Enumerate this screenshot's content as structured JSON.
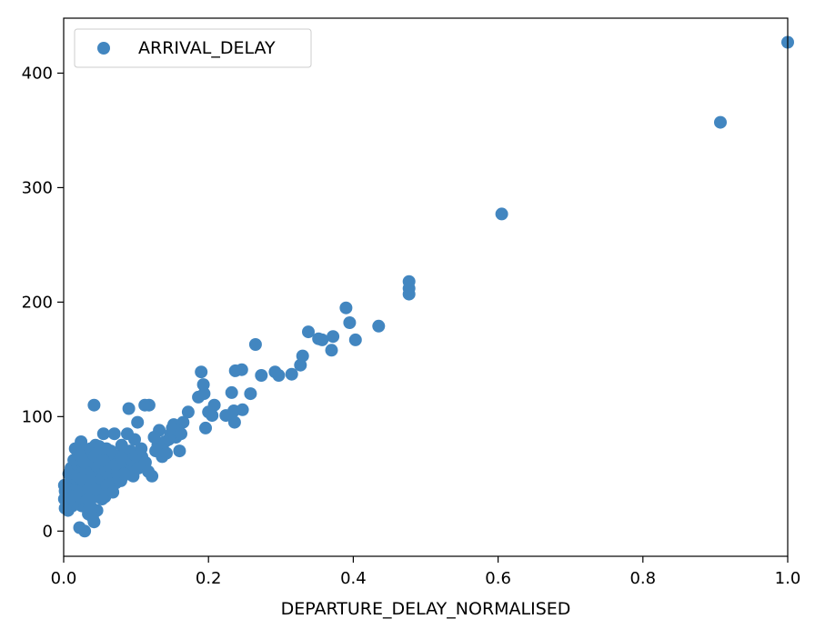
{
  "chart_data": {
    "type": "scatter",
    "title": "",
    "xlabel": "DEPARTURE_DELAY_NORMALISED",
    "ylabel": "",
    "xlim": [
      0.0,
      1.0
    ],
    "ylim": [
      -22,
      448
    ],
    "xticks": [
      0.0,
      0.2,
      0.4,
      0.6,
      0.8,
      1.0
    ],
    "xtick_labels": [
      "0.0",
      "0.2",
      "0.4",
      "0.6",
      "0.8",
      "1.0"
    ],
    "yticks": [
      0,
      100,
      200,
      300,
      400
    ],
    "ytick_labels": [
      "0",
      "100",
      "200",
      "300",
      "400"
    ],
    "grid": false,
    "legend": {
      "position": "top-left",
      "entries": [
        "ARRIVAL_DELAY"
      ]
    },
    "series": [
      {
        "name": "ARRIVAL_DELAY",
        "color": "#4286c0",
        "points": [
          [
            1.0,
            427
          ],
          [
            0.907,
            357
          ],
          [
            0.605,
            277
          ],
          [
            0.477,
            218
          ],
          [
            0.477,
            212
          ],
          [
            0.477,
            207
          ],
          [
            0.435,
            179
          ],
          [
            0.403,
            167
          ],
          [
            0.395,
            182
          ],
          [
            0.39,
            195
          ],
          [
            0.372,
            170
          ],
          [
            0.37,
            158
          ],
          [
            0.357,
            167
          ],
          [
            0.352,
            168
          ],
          [
            0.338,
            174
          ],
          [
            0.33,
            153
          ],
          [
            0.327,
            145
          ],
          [
            0.315,
            137
          ],
          [
            0.297,
            136
          ],
          [
            0.292,
            139
          ],
          [
            0.273,
            136
          ],
          [
            0.265,
            163
          ],
          [
            0.258,
            120
          ],
          [
            0.247,
            106
          ],
          [
            0.246,
            141
          ],
          [
            0.237,
            140
          ],
          [
            0.236,
            95
          ],
          [
            0.232,
            121
          ],
          [
            0.235,
            105
          ],
          [
            0.224,
            101
          ],
          [
            0.208,
            110
          ],
          [
            0.205,
            101
          ],
          [
            0.2,
            104
          ],
          [
            0.196,
            90
          ],
          [
            0.194,
            120
          ],
          [
            0.193,
            128
          ],
          [
            0.19,
            139
          ],
          [
            0.186,
            117
          ],
          [
            0.172,
            104
          ],
          [
            0.165,
            95
          ],
          [
            0.16,
            70
          ],
          [
            0.155,
            82
          ],
          [
            0.152,
            93
          ],
          [
            0.148,
            85
          ],
          [
            0.145,
            80
          ],
          [
            0.14,
            78
          ],
          [
            0.136,
            65
          ],
          [
            0.132,
            88
          ],
          [
            0.13,
            75
          ],
          [
            0.125,
            82
          ],
          [
            0.122,
            48
          ],
          [
            0.118,
            110
          ],
          [
            0.112,
            110
          ],
          [
            0.11,
            58
          ],
          [
            0.108,
            65
          ],
          [
            0.105,
            60
          ],
          [
            0.102,
            95
          ],
          [
            0.098,
            80
          ],
          [
            0.095,
            55
          ],
          [
            0.092,
            70
          ],
          [
            0.09,
            107
          ],
          [
            0.088,
            85
          ],
          [
            0.085,
            60
          ],
          [
            0.082,
            48
          ],
          [
            0.08,
            75
          ],
          [
            0.078,
            55
          ],
          [
            0.075,
            65
          ],
          [
            0.072,
            42
          ],
          [
            0.07,
            85
          ],
          [
            0.068,
            50
          ],
          [
            0.065,
            70
          ],
          [
            0.062,
            35
          ],
          [
            0.06,
            60
          ],
          [
            0.058,
            45
          ],
          [
            0.055,
            85
          ],
          [
            0.053,
            28
          ],
          [
            0.05,
            65
          ],
          [
            0.048,
            40
          ],
          [
            0.046,
            18
          ],
          [
            0.044,
            75
          ],
          [
            0.042,
            8
          ],
          [
            0.042,
            110
          ],
          [
            0.04,
            55
          ],
          [
            0.038,
            30
          ],
          [
            0.036,
            62
          ],
          [
            0.034,
            15
          ],
          [
            0.032,
            45
          ],
          [
            0.03,
            70
          ],
          [
            0.029,
            0
          ],
          [
            0.028,
            35
          ],
          [
            0.026,
            55
          ],
          [
            0.025,
            22
          ],
          [
            0.024,
            78
          ],
          [
            0.022,
            3
          ],
          [
            0.021,
            40
          ],
          [
            0.02,
            60
          ],
          [
            0.018,
            28
          ],
          [
            0.017,
            50
          ],
          [
            0.016,
            72
          ],
          [
            0.015,
            35
          ],
          [
            0.013,
            45
          ],
          [
            0.012,
            22
          ],
          [
            0.01,
            55
          ],
          [
            0.009,
            30
          ],
          [
            0.008,
            40
          ],
          [
            0.006,
            18
          ],
          [
            0.005,
            38
          ],
          [
            0.004,
            25
          ],
          [
            0.003,
            33
          ],
          [
            0.002,
            20
          ],
          [
            0.001,
            28
          ],
          [
            0.001,
            40
          ],
          [
            0.002,
            35
          ],
          [
            0.007,
            50
          ],
          [
            0.011,
            30
          ],
          [
            0.014,
            62
          ],
          [
            0.019,
            48
          ],
          [
            0.023,
            66
          ],
          [
            0.027,
            44
          ],
          [
            0.031,
            26
          ],
          [
            0.033,
            58
          ],
          [
            0.035,
            38
          ],
          [
            0.037,
            72
          ],
          [
            0.039,
            20
          ],
          [
            0.041,
            48
          ],
          [
            0.043,
            66
          ],
          [
            0.045,
            30
          ],
          [
            0.047,
            56
          ],
          [
            0.049,
            74
          ],
          [
            0.051,
            38
          ],
          [
            0.054,
            50
          ],
          [
            0.057,
            30
          ],
          [
            0.059,
            72
          ],
          [
            0.061,
            52
          ],
          [
            0.063,
            40
          ],
          [
            0.066,
            60
          ],
          [
            0.069,
            45
          ],
          [
            0.071,
            66
          ],
          [
            0.074,
            50
          ],
          [
            0.077,
            62
          ],
          [
            0.079,
            44
          ],
          [
            0.083,
            58
          ],
          [
            0.086,
            70
          ],
          [
            0.089,
            52
          ],
          [
            0.093,
            62
          ],
          [
            0.096,
            48
          ],
          [
            0.099,
            66
          ],
          [
            0.103,
            55
          ],
          [
            0.107,
            72
          ],
          [
            0.113,
            60
          ],
          [
            0.117,
            52
          ],
          [
            0.127,
            70
          ],
          [
            0.134,
            72
          ],
          [
            0.142,
            68
          ],
          [
            0.15,
            90
          ],
          [
            0.158,
            88
          ],
          [
            0.162,
            85
          ],
          [
            0.03,
            52
          ],
          [
            0.036,
            44
          ],
          [
            0.044,
            36
          ],
          [
            0.052,
            46
          ],
          [
            0.058,
            52
          ],
          [
            0.064,
            56
          ],
          [
            0.072,
            58
          ],
          [
            0.08,
            64
          ],
          [
            0.024,
            46
          ],
          [
            0.028,
            60
          ],
          [
            0.034,
            28
          ],
          [
            0.04,
            12
          ],
          [
            0.046,
            68
          ],
          [
            0.054,
            62
          ],
          [
            0.06,
            40
          ],
          [
            0.068,
            34
          ],
          [
            0.076,
            46
          ],
          [
            0.084,
            50
          ]
        ]
      }
    ]
  }
}
